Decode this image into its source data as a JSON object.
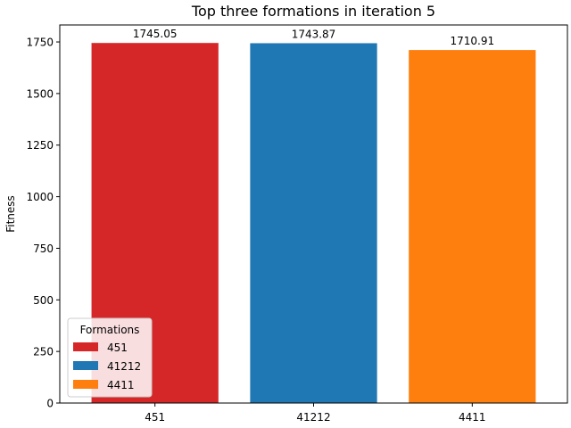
{
  "chart_data": {
    "type": "bar",
    "title": "Top three formations in iteration 5",
    "xlabel": "",
    "ylabel": "Fitness",
    "categories": [
      "451",
      "41212",
      "4411"
    ],
    "values": [
      1745.05,
      1743.87,
      1710.91
    ],
    "value_labels": [
      "1745.05",
      "1743.87",
      "1710.91"
    ],
    "colors": [
      "#d62728",
      "#1f77b4",
      "#ff7f0e"
    ],
    "ylim": [
      0,
      1832.3
    ],
    "yticks": [
      0,
      250,
      500,
      750,
      1000,
      1250,
      1500,
      1750
    ],
    "grid": false,
    "legend": {
      "title": "Formations",
      "placement": "lower-left",
      "entries": [
        "451",
        "41212",
        "4411"
      ]
    }
  }
}
